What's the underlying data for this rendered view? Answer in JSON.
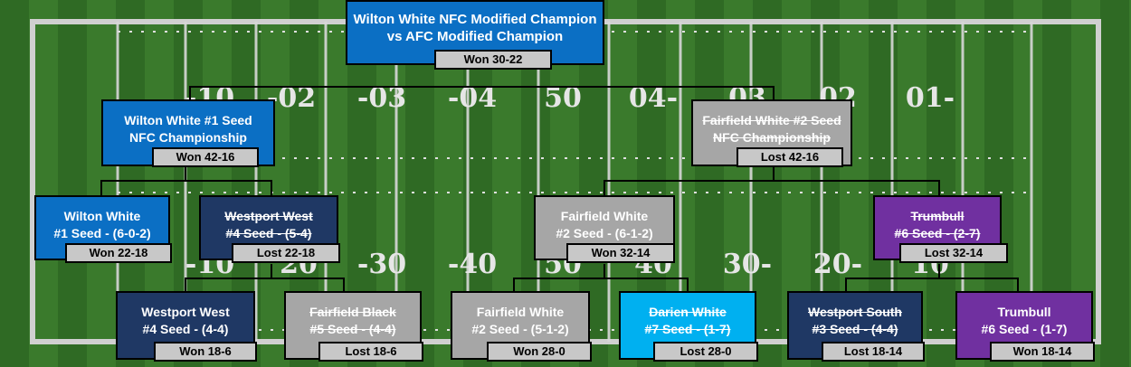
{
  "colors": {
    "wilton_blue": "#0b6fc4",
    "westport_navy": "#1f3864",
    "fairfield_gray": "#a6a6a6",
    "trumbull_purple": "#7030a0",
    "darien_cyan": "#00b0f0",
    "result_gray": "#c8c8c8",
    "field_green": "#2f6a24"
  },
  "field": {
    "top_numbers": [
      "-10",
      "-02",
      "-03",
      "-04",
      "50",
      "04-",
      "03",
      "02",
      "01-"
    ],
    "bottom_numbers": [
      "-10",
      "20",
      "-30",
      "-40",
      "50",
      "40",
      "30-",
      "20-",
      "10"
    ]
  },
  "final": {
    "line1": "Wilton White NFC Modified Champion",
    "line2": "vs AFC Modified Champion",
    "result": "Won 30-22"
  },
  "semis": {
    "left": {
      "line1": "Wilton White #1 Seed",
      "line2": "NFC Championship",
      "result": "Won 42-16"
    },
    "right": {
      "line1": "Fairfield White #2 Seed",
      "line2": "NFC Championship",
      "result": "Lost 42-16"
    }
  },
  "quarters": [
    {
      "line1": "Wilton White",
      "line2": "#1 Seed - (6-0-2)",
      "result": "Won 22-18"
    },
    {
      "line1": "Westport West",
      "line2": "#4 Seed - (5-4)",
      "result": "Lost 22-18"
    },
    {
      "line1": "Fairfield White",
      "line2": "#2 Seed - (6-1-2)",
      "result": "Won 32-14"
    },
    {
      "line1": "Trumbull",
      "line2": "#6 Seed - (2-7)",
      "result": "Lost 32-14"
    }
  ],
  "firstround": [
    {
      "line1": "Westport West",
      "line2": "#4 Seed - (4-4)",
      "result": "Won 18-6"
    },
    {
      "line1": "Fairfield Black",
      "line2": "#5 Seed - (4-4)",
      "result": "Lost 18-6"
    },
    {
      "line1": "Fairfield White",
      "line2": "#2 Seed - (5-1-2)",
      "result": "Won 28-0"
    },
    {
      "line1": "Darien White",
      "line2": "#7 Seed - (1-7)",
      "result": "Lost 28-0"
    },
    {
      "line1": "Westport South",
      "line2": "#3 Seed - (4-4)",
      "result": "Lost 18-14"
    },
    {
      "line1": "Trumbull",
      "line2": "#6 Seed - (1-7)",
      "result": "Won 18-14"
    }
  ]
}
